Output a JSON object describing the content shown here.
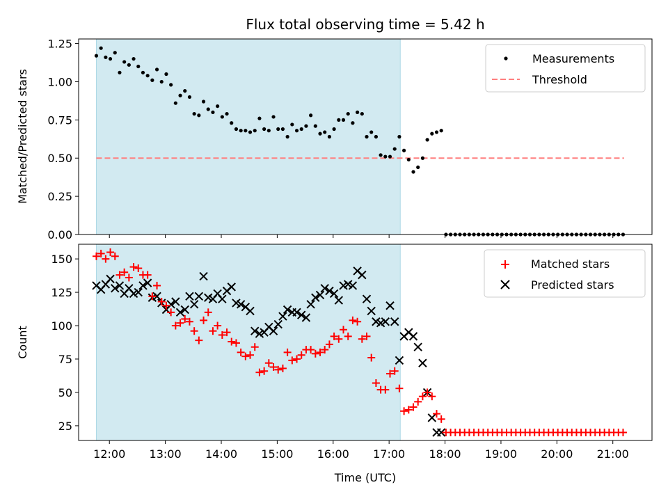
{
  "chart_data": {
    "type": "scatter",
    "title": "Flux total observing time = 5.42 h",
    "shaded_region": {
      "x_start": "11:46",
      "x_end": "17:12",
      "color": "#add8e6"
    },
    "x_axis": {
      "label": "Time (UTC)",
      "range": [
        "11:27",
        "21:42"
      ],
      "ticks": [
        "12:00",
        "13:00",
        "14:00",
        "15:00",
        "16:00",
        "17:00",
        "18:00",
        "19:00",
        "20:00",
        "21:00"
      ]
    },
    "panels": [
      {
        "ylabel": "Matched/Predicted stars",
        "ylim": [
          0,
          1.28
        ],
        "yticks": [
          "0.00",
          "0.25",
          "0.50",
          "0.75",
          "1.00",
          "1.25"
        ],
        "legend_position": "top-right",
        "series": [
          {
            "name": "Measurements",
            "marker": "dot",
            "color": "#000000",
            "x": [
              "11:46",
              "11:51",
              "11:56",
              "12:01",
              "12:06",
              "12:11",
              "12:16",
              "12:21",
              "12:26",
              "12:31",
              "12:36",
              "12:41",
              "12:46",
              "12:51",
              "12:56",
              "13:01",
              "13:06",
              "13:11",
              "13:16",
              "13:21",
              "13:26",
              "13:31",
              "13:36",
              "13:41",
              "13:46",
              "13:51",
              "13:56",
              "14:01",
              "14:06",
              "14:11",
              "14:16",
              "14:21",
              "14:26",
              "14:31",
              "14:36",
              "14:41",
              "14:46",
              "14:51",
              "14:56",
              "15:01",
              "15:06",
              "15:11",
              "15:16",
              "15:21",
              "15:26",
              "15:31",
              "15:36",
              "15:41",
              "15:46",
              "15:51",
              "15:56",
              "16:01",
              "16:06",
              "16:11",
              "16:16",
              "16:21",
              "16:26",
              "16:31",
              "16:36",
              "16:41",
              "16:46",
              "16:51",
              "16:56",
              "17:01",
              "17:06",
              "17:11",
              "17:16",
              "17:21",
              "17:26",
              "17:31",
              "17:36",
              "17:41",
              "17:46",
              "17:51",
              "17:56"
            ],
            "y": [
              1.17,
              1.22,
              1.16,
              1.15,
              1.19,
              1.06,
              1.13,
              1.11,
              1.15,
              1.1,
              1.06,
              1.04,
              1.01,
              1.08,
              1.0,
              1.05,
              0.98,
              0.86,
              0.91,
              0.94,
              0.9,
              0.79,
              0.78,
              0.87,
              0.82,
              0.8,
              0.84,
              0.77,
              0.79,
              0.73,
              0.69,
              0.68,
              0.68,
              0.67,
              0.68,
              0.76,
              0.69,
              0.68,
              0.77,
              0.69,
              0.69,
              0.64,
              0.72,
              0.68,
              0.69,
              0.71,
              0.78,
              0.71,
              0.66,
              0.67,
              0.64,
              0.69,
              0.75,
              0.75,
              0.79,
              0.73,
              0.8,
              0.79,
              0.64,
              0.67,
              0.64,
              0.52,
              0.51,
              0.51,
              0.56,
              0.64,
              0.55,
              0.49,
              0.41,
              0.44,
              0.5,
              0.62,
              0.66,
              0.67,
              0.68
            ]
          },
          {
            "name": "Threshold",
            "marker": "dashed-line",
            "color": "#ff7f7f",
            "x": [
              "11:46",
              "21:12"
            ],
            "y": [
              0.5,
              0.5
            ]
          }
        ]
      },
      {
        "ylabel": "Count",
        "ylim": [
          14,
          161
        ],
        "yticks": [
          "25",
          "50",
          "75",
          "100",
          "125",
          "150"
        ],
        "legend_position": "top-right",
        "series": [
          {
            "name": "Matched stars",
            "marker": "plus",
            "color": "#ff0000",
            "x": [
              "11:46",
              "11:51",
              "11:56",
              "12:01",
              "12:06",
              "12:11",
              "12:16",
              "12:21",
              "12:26",
              "12:31",
              "12:36",
              "12:41",
              "12:46",
              "12:51",
              "12:56",
              "13:01",
              "13:06",
              "13:11",
              "13:16",
              "13:21",
              "13:26",
              "13:31",
              "13:36",
              "13:41",
              "13:46",
              "13:51",
              "13:56",
              "14:01",
              "14:06",
              "14:11",
              "14:16",
              "14:21",
              "14:26",
              "14:31",
              "14:36",
              "14:41",
              "14:46",
              "14:51",
              "14:56",
              "15:01",
              "15:06",
              "15:11",
              "15:16",
              "15:21",
              "15:26",
              "15:31",
              "15:36",
              "15:41",
              "15:46",
              "15:51",
              "15:56",
              "16:01",
              "16:06",
              "16:11",
              "16:16",
              "16:21",
              "16:26",
              "16:31",
              "16:36",
              "16:41",
              "16:46",
              "16:51",
              "16:56",
              "17:01",
              "17:06",
              "17:11",
              "17:16",
              "17:21",
              "17:26",
              "17:31",
              "17:36",
              "17:41",
              "17:46",
              "17:51",
              "17:56"
            ],
            "y": [
              152,
              154,
              150,
              155,
              152,
              138,
              140,
              136,
              144,
              143,
              138,
              138,
              122,
              130,
              118,
              115,
              110,
              100,
              102,
              105,
              103,
              96,
              89,
              104,
              110,
              96,
              100,
              93,
              95,
              88,
              87,
              80,
              77,
              78,
              84,
              65,
              66,
              72,
              69,
              67,
              68,
              80,
              74,
              75,
              78,
              82,
              82,
              79,
              80,
              82,
              86,
              92,
              90,
              97,
              92,
              104,
              103,
              90,
              92,
              76,
              57,
              52,
              52,
              64,
              66,
              53,
              36,
              37,
              39,
              43,
              47,
              50,
              47,
              34,
              30
            ]
          },
          {
            "name": "Predicted stars",
            "marker": "x",
            "color": "#000000",
            "x": [
              "11:46",
              "11:51",
              "11:56",
              "12:01",
              "12:06",
              "12:11",
              "12:16",
              "12:21",
              "12:26",
              "12:31",
              "12:36",
              "12:41",
              "12:46",
              "12:51",
              "12:56",
              "13:01",
              "13:06",
              "13:11",
              "13:16",
              "13:21",
              "13:26",
              "13:31",
              "13:36",
              "13:41",
              "13:46",
              "13:51",
              "13:56",
              "14:01",
              "14:06",
              "14:11",
              "14:16",
              "14:21",
              "14:26",
              "14:31",
              "14:36",
              "14:41",
              "14:46",
              "14:51",
              "14:56",
              "15:01",
              "15:06",
              "15:11",
              "15:16",
              "15:21",
              "15:26",
              "15:31",
              "15:36",
              "15:41",
              "15:46",
              "15:51",
              "15:56",
              "16:01",
              "16:06",
              "16:11",
              "16:16",
              "16:21",
              "16:26",
              "16:31",
              "16:36",
              "16:41",
              "16:46",
              "16:51",
              "16:56",
              "17:01",
              "17:06",
              "17:11",
              "17:16",
              "17:21",
              "17:26",
              "17:31",
              "17:36",
              "17:41",
              "17:46",
              "17:51",
              "17:56"
            ],
            "y": [
              130,
              127,
              131,
              135,
              128,
              130,
              124,
              128,
              124,
              125,
              130,
              132,
              121,
              122,
              117,
              112,
              116,
              118,
              110,
              112,
              122,
              116,
              122,
              137,
              121,
              120,
              124,
              120,
              126,
              129,
              117,
              116,
              114,
              111,
              96,
              94,
              95,
              99,
              96,
              101,
              107,
              112,
              110,
              110,
              108,
              106,
              116,
              121,
              123,
              128,
              126,
              124,
              119,
              130,
              131,
              130,
              141,
              138,
              120,
              111,
              103,
              102,
              103,
              115,
              103,
              74,
              92,
              95,
              92,
              84,
              72,
              50,
              31,
              20,
              20
            ]
          }
        ],
        "flatline_from": "17:56",
        "flatline_to": "21:12",
        "flatline_value": 20
      }
    ],
    "zero_tail": {
      "panel": "top",
      "from": "17:56",
      "to": "21:12",
      "value": 0.0
    },
    "colors": {
      "shade": "#add8e6",
      "threshold": "#ff7f7f",
      "matched": "#ff0000",
      "predicted": "#000000",
      "measurements": "#000000"
    }
  }
}
